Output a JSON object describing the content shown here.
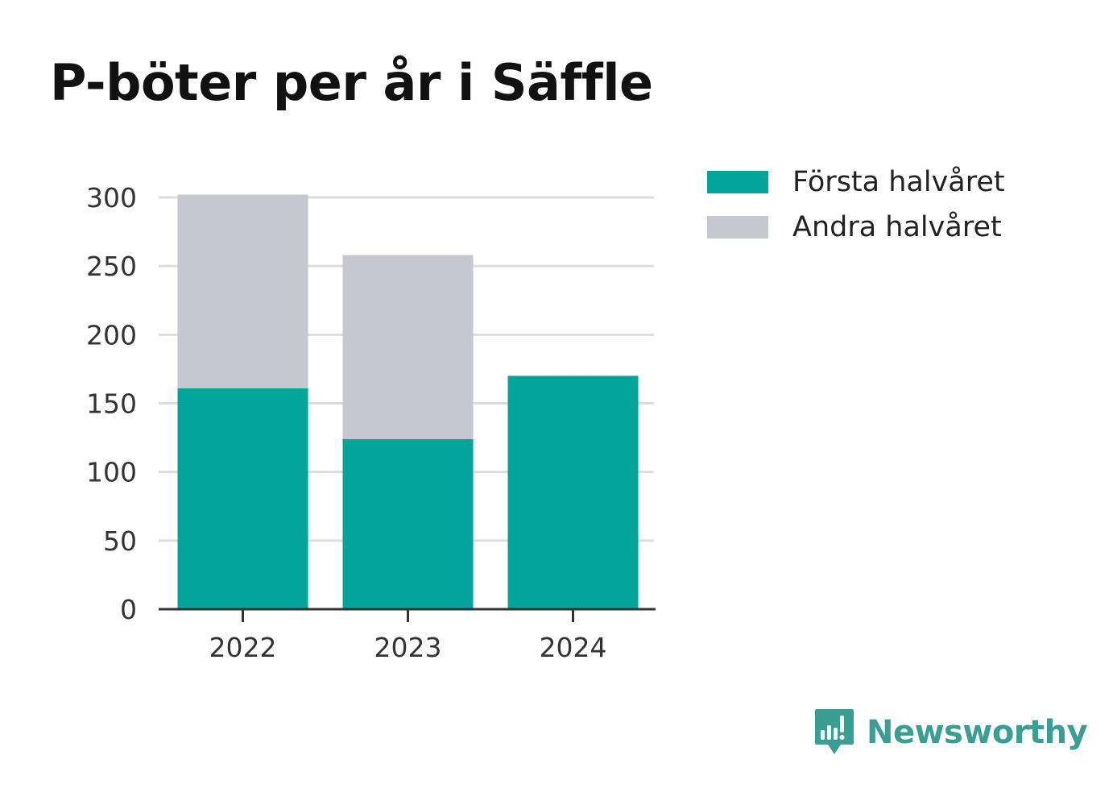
{
  "title": "P-böter per år i Säffle",
  "brand": {
    "name": "Newsworthy",
    "icon": "newsworthy-logo-icon",
    "color": "#3a9e93"
  },
  "chart_data": {
    "type": "bar",
    "stacked": true,
    "title": "P-böter per år i Säffle",
    "xlabel": "",
    "ylabel": "",
    "categories": [
      "2022",
      "2023",
      "2024"
    ],
    "series": [
      {
        "name": "Första halvåret",
        "values": [
          161,
          124,
          170
        ],
        "color": "#00a499"
      },
      {
        "name": "Andra halvåret",
        "values": [
          141,
          134,
          null
        ],
        "color": "#c7c7d0"
      }
    ],
    "ylim": [
      0,
      300
    ],
    "yticks": [
      0,
      50,
      100,
      150,
      200,
      250,
      300
    ],
    "grid": true,
    "legend_position": "top-right"
  }
}
